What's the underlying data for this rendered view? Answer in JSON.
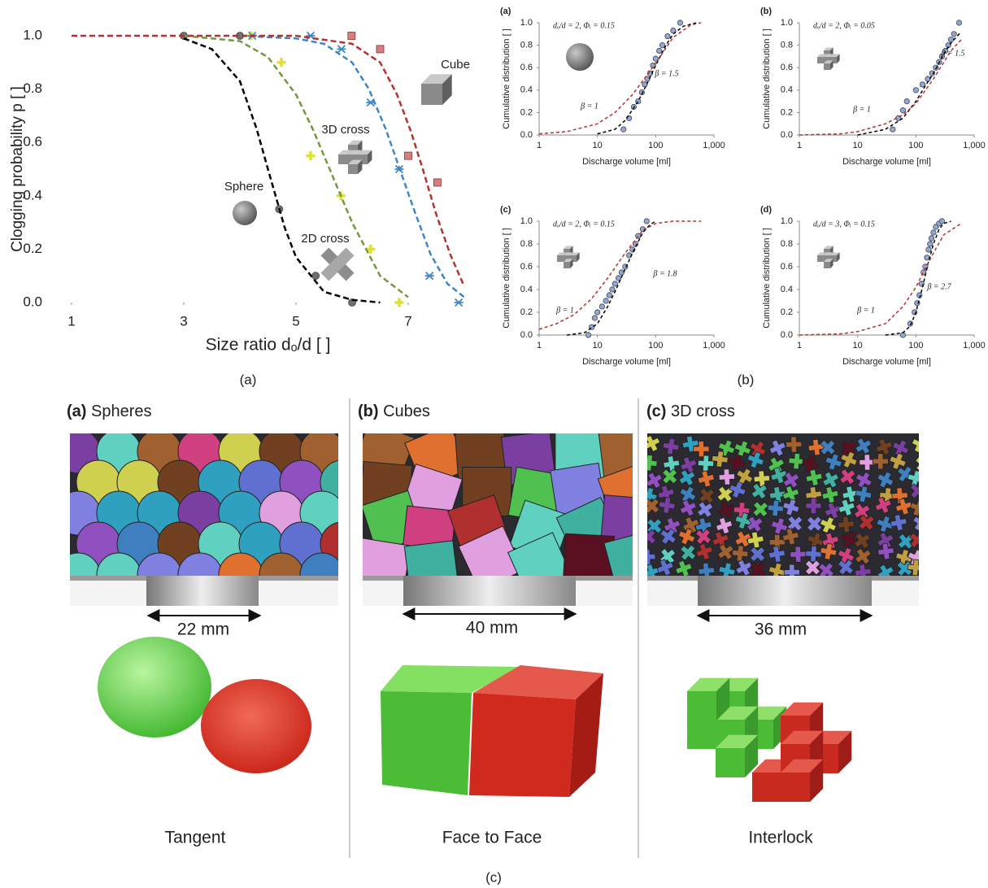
{
  "chart_data": [
    {
      "type": "scatter",
      "ylabel": "Clogging probability p [ ]",
      "xlabel": "Size ratio dₒ/d [ ]",
      "xlim": [
        1,
        8
      ],
      "xticks": [
        1,
        3,
        5,
        7
      ],
      "ylim": [
        0,
        1
      ],
      "yticks": [
        {
          "value": 0,
          "label": "0.0"
        },
        0.2,
        0.4,
        0.6,
        0.8,
        {
          "value": 1,
          "label": "1.0"
        }
      ],
      "series": [
        {
          "name": "Sphere",
          "color": "#707070",
          "marker": "circle",
          "x": [
            3,
            4,
            4.7,
            5.35,
            6
          ],
          "values": [
            1,
            1,
            0.35,
            0.1,
            0
          ]
        },
        {
          "name": "2D cross",
          "color": "#e0e030",
          "marker": "plus",
          "x": [
            4.2,
            4.74,
            5.26,
            5.8,
            6.33,
            6.84
          ],
          "values": [
            1,
            0.9,
            0.55,
            0.4,
            0.2,
            0
          ]
        },
        {
          "name": "3D cross",
          "color": "#3f86c8",
          "marker": "asterisk",
          "x": [
            4.22,
            5.26,
            5.81,
            6.33,
            6.84,
            7.38,
            7.9
          ],
          "values": [
            1,
            1,
            0.95,
            0.75,
            0.5,
            0.1,
            0
          ]
        },
        {
          "name": "Cube",
          "color": "#d48080",
          "marker": "square",
          "x": [
            5.99,
            6.5,
            7.0,
            7.52
          ],
          "values": [
            1,
            0.95,
            0.55,
            0.45
          ]
        },
        {
          "color": "#000000",
          "dash": true,
          "x": [
            3,
            3.5,
            4,
            4.3,
            4.5,
            4.8,
            5,
            5.5,
            6,
            6.5
          ],
          "values": [
            0.99,
            0.95,
            0.83,
            0.65,
            0.5,
            0.28,
            0.17,
            0.04,
            0.01,
            0
          ]
        },
        {
          "color": "#6f9a3e",
          "dash": true,
          "x": [
            3,
            4,
            4.5,
            5,
            5.3,
            5.6,
            6,
            6.5,
            7
          ],
          "values": [
            1,
            0.98,
            0.92,
            0.78,
            0.65,
            0.5,
            0.3,
            0.1,
            0.02
          ]
        },
        {
          "color": "#3f86c8",
          "dash": true,
          "x": [
            4,
            5,
            5.5,
            6,
            6.3,
            6.6,
            6.85,
            7.1,
            7.4,
            7.7,
            8
          ],
          "values": [
            1,
            0.99,
            0.97,
            0.9,
            0.8,
            0.65,
            0.5,
            0.35,
            0.18,
            0.07,
            0.02
          ]
        },
        {
          "color": "#b5322c",
          "dash": true,
          "x": [
            1,
            5,
            6,
            6.5,
            6.8,
            7.05,
            7.26,
            7.5,
            7.75,
            8
          ],
          "values": [
            1,
            1,
            0.97,
            0.9,
            0.78,
            0.64,
            0.5,
            0.33,
            0.18,
            0.06
          ]
        }
      ]
    },
    {
      "type": "scatter",
      "title": "(a)",
      "annotation": "dₒ/d = 2, Φᵢ = 0.15",
      "xscale": "log",
      "ylabel": "Cumulative distribution [ ]",
      "xlabel": "Discharge volume [ml]",
      "xlim": [
        1,
        1000
      ],
      "xticks": [
        1,
        10,
        100,
        {
          "value": 1000,
          "label": "1,000"
        }
      ],
      "ylim": [
        0,
        1
      ],
      "yticks": [
        {
          "value": 0,
          "label": "0.0"
        },
        0.2,
        0.4,
        0.6,
        0.8,
        {
          "value": 1,
          "label": "1.0"
        }
      ],
      "series": [
        {
          "color": "#8fa8d8",
          "marker": "circle",
          "x": [
            28,
            35,
            42,
            50,
            58,
            65,
            72,
            80,
            90,
            100,
            115,
            130,
            160,
            200,
            263
          ],
          "values": [
            0.05,
            0.15,
            0.25,
            0.3,
            0.38,
            0.45,
            0.5,
            0.55,
            0.62,
            0.68,
            0.75,
            0.8,
            0.88,
            0.93,
            1.0
          ]
        },
        {
          "name": "β = 1.5",
          "color": "#000000",
          "dash": true,
          "x": [
            10,
            20,
            30,
            50,
            70,
            100,
            150,
            200,
            300,
            500
          ],
          "values": [
            0.01,
            0.05,
            0.13,
            0.3,
            0.45,
            0.62,
            0.8,
            0.9,
            0.97,
            1.0
          ]
        },
        {
          "name": "β = 1",
          "color": "#b5322c",
          "dash": true,
          "x": [
            1,
            3,
            10,
            20,
            40,
            70,
            100,
            200,
            400,
            600
          ],
          "values": [
            0.01,
            0.03,
            0.1,
            0.2,
            0.36,
            0.53,
            0.64,
            0.87,
            0.98,
            1.0
          ]
        }
      ]
    },
    {
      "type": "scatter",
      "title": "(b)",
      "annotation": "dₒ/d = 2, Φᵢ = 0.05",
      "xscale": "log",
      "ylabel": "Cumulative distribution [ ]",
      "xlabel": "Discharge volume [ml]",
      "xlim": [
        1,
        1000
      ],
      "xticks": [
        1,
        10,
        100,
        {
          "value": 1000,
          "label": "1,000"
        }
      ],
      "ylim": [
        0,
        1
      ],
      "yticks": [
        {
          "value": 0,
          "label": "0.0"
        },
        0.2,
        0.4,
        0.6,
        0.8,
        {
          "value": 1,
          "label": "1.0"
        }
      ],
      "series": [
        {
          "color": "#8fa8d8",
          "marker": "circle",
          "x": [
            40,
            50,
            60,
            70,
            100,
            130,
            160,
            190,
            220,
            250,
            280,
            320,
            360,
            400,
            450,
            550
          ],
          "values": [
            0.05,
            0.15,
            0.22,
            0.3,
            0.4,
            0.45,
            0.5,
            0.55,
            0.6,
            0.65,
            0.7,
            0.75,
            0.8,
            0.85,
            0.9,
            1.0
          ]
        },
        {
          "name": "β = 1.5",
          "color": "#000000",
          "dash": true,
          "x": [
            10,
            30,
            60,
            100,
            150,
            200,
            300,
            400,
            600
          ],
          "values": [
            0,
            0.05,
            0.15,
            0.3,
            0.45,
            0.55,
            0.72,
            0.82,
            0.92
          ]
        },
        {
          "name": "β = 1",
          "color": "#b5322c",
          "dash": true,
          "x": [
            1,
            5,
            10,
            30,
            60,
            100,
            200,
            400,
            600
          ],
          "values": [
            0,
            0.01,
            0.03,
            0.1,
            0.18,
            0.28,
            0.5,
            0.75,
            0.85
          ]
        }
      ]
    },
    {
      "type": "scatter",
      "title": "(c)",
      "annotation": "dₒ/d = 2, Φᵢ = 0.15",
      "xscale": "log",
      "ylabel": "Cumulative distribution [ ]",
      "xlabel": "Discharge volume [ml]",
      "xlim": [
        1,
        1000
      ],
      "xticks": [
        1,
        10,
        100,
        {
          "value": 1000,
          "label": "1,000"
        }
      ],
      "ylim": [
        0,
        1
      ],
      "yticks": [
        {
          "value": 0,
          "label": "0.0"
        },
        0.2,
        0.4,
        0.6,
        0.8,
        {
          "value": 1,
          "label": "1.0"
        }
      ],
      "series": [
        {
          "color": "#8fa8d8",
          "marker": "circle",
          "x": [
            7,
            8,
            9,
            10,
            12,
            14,
            16,
            18,
            20,
            23,
            26,
            30,
            35,
            40,
            45,
            50,
            60,
            70
          ],
          "values": [
            0,
            0.07,
            0.15,
            0.2,
            0.25,
            0.3,
            0.35,
            0.4,
            0.45,
            0.5,
            0.55,
            0.6,
            0.7,
            0.75,
            0.8,
            0.87,
            0.93,
            1.0
          ]
        },
        {
          "name": "β = 1.8",
          "color": "#000000",
          "dash": true,
          "x": [
            3,
            6,
            10,
            15,
            20,
            30,
            40,
            60,
            80,
            100
          ],
          "values": [
            0,
            0.02,
            0.1,
            0.25,
            0.38,
            0.58,
            0.72,
            0.9,
            0.97,
            1.0
          ]
        },
        {
          "name": "β = 1",
          "color": "#b5322c",
          "dash": true,
          "x": [
            1,
            2,
            4,
            8,
            15,
            30,
            60,
            100,
            200,
            600
          ],
          "values": [
            0.05,
            0.1,
            0.18,
            0.32,
            0.5,
            0.72,
            0.92,
            0.98,
            1.0,
            1.0
          ]
        }
      ]
    },
    {
      "type": "scatter",
      "title": "(d)",
      "annotation": "dₒ/d = 3, Φᵢ = 0.15",
      "xscale": "log",
      "ylabel": "Cumulative distribution [ ]",
      "xlabel": "Discharge volume [ml]",
      "xlim": [
        1,
        1000
      ],
      "xticks": [
        1,
        10,
        100,
        {
          "value": 1000,
          "label": "1,000"
        }
      ],
      "ylim": [
        0,
        1
      ],
      "yticks": [
        {
          "value": 0,
          "label": "0.0"
        },
        0.2,
        0.4,
        0.6,
        0.8,
        {
          "value": 1,
          "label": "1.0"
        }
      ],
      "series": [
        {
          "color": "#8fa8d8",
          "marker": "circle",
          "x": [
            60,
            80,
            95,
            105,
            115,
            125,
            135,
            145,
            155,
            165,
            175,
            185,
            200,
            220,
            250,
            280
          ],
          "values": [
            0,
            0.1,
            0.2,
            0.28,
            0.35,
            0.45,
            0.55,
            0.6,
            0.68,
            0.75,
            0.8,
            0.85,
            0.9,
            0.95,
            0.98,
            1.0
          ]
        },
        {
          "name": "β = 2.7",
          "color": "#000000",
          "dash": true,
          "x": [
            30,
            60,
            80,
            100,
            130,
            160,
            200,
            250,
            300,
            400
          ],
          "values": [
            0,
            0.02,
            0.08,
            0.2,
            0.42,
            0.62,
            0.8,
            0.93,
            0.98,
            1.0
          ]
        },
        {
          "name": "β = 1",
          "color": "#b5322c",
          "dash": true,
          "x": [
            1,
            5,
            10,
            30,
            60,
            100,
            150,
            200,
            300,
            600
          ],
          "values": [
            0,
            0.01,
            0.03,
            0.1,
            0.25,
            0.42,
            0.6,
            0.72,
            0.88,
            0.98
          ]
        }
      ]
    }
  ],
  "figure_captions": [
    "(a)",
    "(b)"
  ],
  "panel_c": {
    "caption": "(c)",
    "panels": [
      {
        "label": "(a)",
        "title": "Spheres",
        "size": "22 mm",
        "contact": "Tangent"
      },
      {
        "label": "(b)",
        "title": "Cubes",
        "size": "40 mm",
        "contact": "Face to Face"
      },
      {
        "label": "(c)",
        "title": "3D cross",
        "size": "36 mm",
        "contact": "Interlock"
      }
    ]
  }
}
